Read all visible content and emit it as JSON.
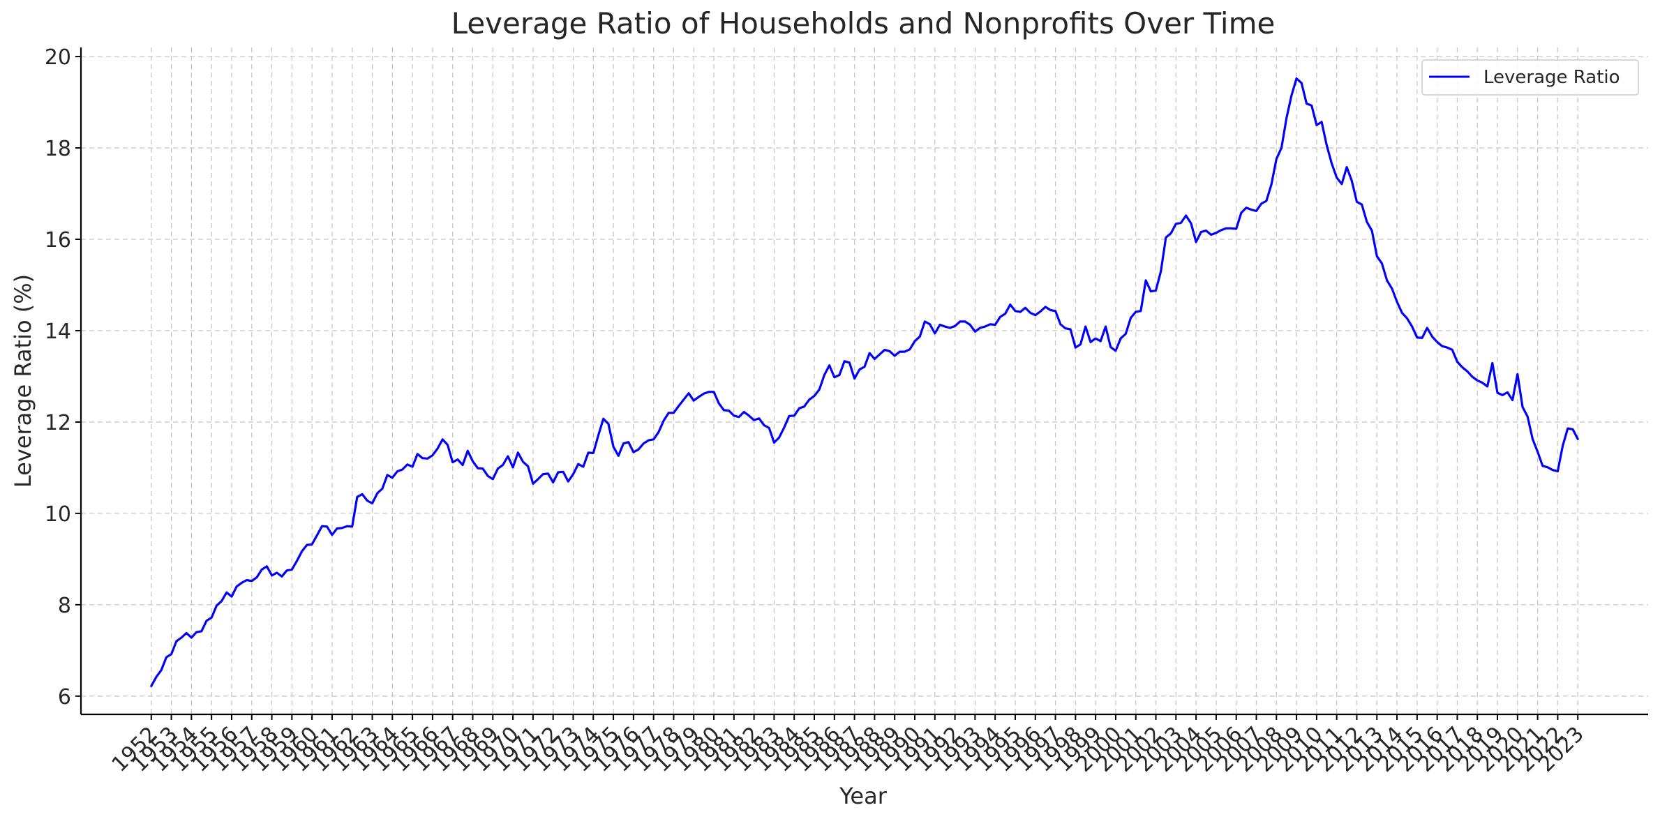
{
  "chart_data": {
    "type": "line",
    "title": "Leverage Ratio of Households and Nonprofits Over Time",
    "xlabel": "Year",
    "ylabel": "Leverage Ratio (%)",
    "x_range": [
      1952,
      2023
    ],
    "ylim": [
      5.6,
      20.2
    ],
    "yticks": [
      6,
      8,
      10,
      12,
      14,
      16,
      18,
      20
    ],
    "xticks": [
      "1952",
      "1953",
      "1954",
      "1955",
      "1956",
      "1957",
      "1958",
      "1959",
      "1960",
      "1961",
      "1962",
      "1963",
      "1964",
      "1965",
      "1966",
      "1967",
      "1968",
      "1969",
      "1970",
      "1971",
      "1972",
      "1973",
      "1974",
      "1975",
      "1976",
      "1977",
      "1978",
      "1979",
      "1980",
      "1981",
      "1982",
      "1983",
      "1984",
      "1985",
      "1986",
      "1987",
      "1988",
      "1989",
      "1990",
      "1991",
      "1992",
      "1993",
      "1994",
      "1995",
      "1996",
      "1997",
      "1998",
      "1999",
      "2000",
      "2001",
      "2002",
      "2003",
      "2004",
      "2005",
      "2006",
      "2007",
      "2008",
      "2009",
      "2010",
      "2011",
      "2012",
      "2013",
      "2014",
      "2015",
      "2016",
      "2017",
      "2018",
      "2019",
      "2020",
      "2021",
      "2022",
      "2023"
    ],
    "grid": true,
    "legend_position": "top-right",
    "color": "#0000ff",
    "series": [
      {
        "name": "Leverage Ratio",
        "x": [
          1952.0,
          1952.25,
          1952.5,
          1952.75,
          1953.0,
          1953.25,
          1953.5,
          1953.75,
          1954.0,
          1954.25,
          1954.5,
          1954.75,
          1955.0,
          1955.25,
          1955.5,
          1955.75,
          1956.0,
          1956.25,
          1956.5,
          1956.75,
          1957.0,
          1957.25,
          1957.5,
          1957.75,
          1958.0,
          1958.25,
          1958.5,
          1958.75,
          1959.0,
          1959.25,
          1959.5,
          1959.75,
          1960.0,
          1960.25,
          1960.5,
          1960.75,
          1961.0,
          1961.25,
          1961.5,
          1961.75,
          1962.0,
          1962.25,
          1962.5,
          1962.75,
          1963.0,
          1963.25,
          1963.5,
          1963.75,
          1964.0,
          1964.25,
          1964.5,
          1964.75,
          1965.0,
          1965.25,
          1965.5,
          1965.75,
          1966.0,
          1966.25,
          1966.5,
          1966.75,
          1967.0,
          1967.25,
          1967.5,
          1967.75,
          1968.0,
          1968.25,
          1968.5,
          1968.75,
          1969.0,
          1969.25,
          1969.5,
          1969.75,
          1970.0,
          1970.25,
          1970.5,
          1970.75,
          1971.0,
          1971.25,
          1971.5,
          1971.75,
          1972.0,
          1972.25,
          1972.5,
          1972.75,
          1973.0,
          1973.25,
          1973.5,
          1973.75,
          1974.0,
          1974.25,
          1974.5,
          1974.75,
          1975.0,
          1975.25,
          1975.5,
          1975.75,
          1976.0,
          1976.25,
          1976.5,
          1976.75,
          1977.0,
          1977.25,
          1977.5,
          1977.75,
          1978.0,
          1978.25,
          1978.5,
          1978.75,
          1979.0,
          1979.25,
          1979.5,
          1979.75,
          1980.0,
          1980.25,
          1980.5,
          1980.75,
          1981.0,
          1981.25,
          1981.5,
          1981.75,
          1982.0,
          1982.25,
          1982.5,
          1982.75,
          1983.0,
          1983.25,
          1983.5,
          1983.75,
          1984.0,
          1984.25,
          1984.5,
          1984.75,
          1985.0,
          1985.25,
          1985.5,
          1985.75,
          1986.0,
          1986.25,
          1986.5,
          1986.75,
          1987.0,
          1987.25,
          1987.5,
          1987.75,
          1988.0,
          1988.25,
          1988.5,
          1988.75,
          1989.0,
          1989.25,
          1989.5,
          1989.75,
          1990.0,
          1990.25,
          1990.5,
          1990.75,
          1991.0,
          1991.25,
          1991.5,
          1991.75,
          1992.0,
          1992.25,
          1992.5,
          1992.75,
          1993.0,
          1993.25,
          1993.5,
          1993.75,
          1994.0,
          1994.25,
          1994.5,
          1994.75,
          1995.0,
          1995.25,
          1995.5,
          1995.75,
          1996.0,
          1996.25,
          1996.5,
          1996.75,
          1997.0,
          1997.25,
          1997.5,
          1997.75,
          1998.0,
          1998.25,
          1998.5,
          1998.75,
          1999.0,
          1999.25,
          1999.5,
          1999.75,
          2000.0,
          2000.25,
          2000.5,
          2000.75,
          2001.0,
          2001.25,
          2001.5,
          2001.75,
          2002.0,
          2002.25,
          2002.5,
          2002.75,
          2003.0,
          2003.25,
          2003.5,
          2003.75,
          2004.0,
          2004.25,
          2004.5,
          2004.75,
          2005.0,
          2005.25,
          2005.5,
          2005.75,
          2006.0,
          2006.25,
          2006.5,
          2006.75,
          2007.0,
          2007.25,
          2007.5,
          2007.75,
          2008.0,
          2008.25,
          2008.5,
          2008.75,
          2009.0,
          2009.25,
          2009.5,
          2009.75,
          2010.0,
          2010.25,
          2010.5,
          2010.75,
          2011.0,
          2011.25,
          2011.5,
          2011.75,
          2012.0,
          2012.25,
          2012.5,
          2012.75,
          2013.0,
          2013.25,
          2013.5,
          2013.75,
          2014.0,
          2014.25,
          2014.5,
          2014.75,
          2015.0,
          2015.25,
          2015.5,
          2015.75,
          2016.0,
          2016.25,
          2016.5,
          2016.75,
          2017.0,
          2017.25,
          2017.5,
          2017.75,
          2018.0,
          2018.25,
          2018.5,
          2018.75,
          2019.0,
          2019.25,
          2019.5,
          2019.75,
          2020.0,
          2020.25,
          2020.5,
          2020.75,
          2021.0,
          2021.25,
          2021.5,
          2021.75,
          2022.0,
          2022.25,
          2022.5,
          2022.75,
          2023.0
        ],
        "y": [
          6.22,
          6.42,
          6.57,
          6.85,
          6.92,
          7.2,
          7.28,
          7.38,
          7.28,
          7.4,
          7.42,
          7.65,
          7.72,
          7.98,
          8.08,
          8.27,
          8.18,
          8.4,
          8.48,
          8.54,
          8.52,
          8.6,
          8.77,
          8.84,
          8.64,
          8.7,
          8.62,
          8.75,
          8.77,
          8.96,
          9.17,
          9.31,
          9.32,
          9.52,
          9.72,
          9.71,
          9.53,
          9.67,
          9.68,
          9.72,
          9.71,
          10.36,
          10.42,
          10.28,
          10.22,
          10.44,
          10.54,
          10.84,
          10.78,
          10.92,
          10.96,
          11.07,
          11.02,
          11.3,
          11.21,
          11.2,
          11.27,
          11.42,
          11.62,
          11.5,
          11.12,
          11.18,
          11.06,
          11.37,
          11.14,
          10.99,
          10.98,
          10.82,
          10.75,
          10.98,
          11.06,
          11.25,
          11.01,
          11.33,
          11.13,
          11.03,
          10.65,
          10.75,
          10.86,
          10.87,
          10.68,
          10.9,
          10.91,
          10.7,
          10.86,
          11.08,
          11.02,
          11.33,
          11.32,
          11.71,
          12.07,
          11.96,
          11.46,
          11.26,
          11.53,
          11.56,
          11.34,
          11.4,
          11.53,
          11.6,
          11.62,
          11.78,
          12.03,
          12.2,
          12.2,
          12.35,
          12.49,
          12.63,
          12.47,
          12.55,
          12.62,
          12.66,
          12.66,
          12.41,
          12.26,
          12.25,
          12.14,
          12.11,
          12.22,
          12.14,
          12.04,
          12.08,
          11.93,
          11.87,
          11.55,
          11.66,
          11.88,
          12.13,
          12.14,
          12.3,
          12.34,
          12.49,
          12.57,
          12.71,
          13.03,
          13.24,
          12.98,
          13.03,
          13.33,
          13.3,
          12.95,
          13.15,
          13.21,
          13.51,
          13.38,
          13.48,
          13.58,
          13.55,
          13.45,
          13.54,
          13.54,
          13.59,
          13.77,
          13.87,
          14.2,
          14.14,
          13.94,
          14.13,
          14.09,
          14.06,
          14.1,
          14.2,
          14.2,
          14.13,
          13.98,
          14.06,
          14.09,
          14.14,
          14.13,
          14.3,
          14.37,
          14.57,
          14.43,
          14.41,
          14.5,
          14.39,
          14.34,
          14.42,
          14.52,
          14.45,
          14.43,
          14.14,
          14.05,
          14.03,
          13.63,
          13.7,
          14.09,
          13.75,
          13.83,
          13.77,
          14.09,
          13.64,
          13.56,
          13.83,
          13.93,
          14.28,
          14.41,
          14.43,
          15.1,
          14.86,
          14.88,
          15.3,
          16.04,
          16.13,
          16.34,
          16.36,
          16.52,
          16.35,
          15.94,
          16.16,
          16.19,
          16.1,
          16.14,
          16.2,
          16.24,
          16.24,
          16.23,
          16.58,
          16.69,
          16.65,
          16.62,
          16.78,
          16.84,
          17.2,
          17.76,
          18.0,
          18.65,
          19.15,
          19.52,
          19.42,
          18.97,
          18.93,
          18.5,
          18.57,
          18.06,
          17.66,
          17.35,
          17.21,
          17.58,
          17.28,
          16.82,
          16.76,
          16.38,
          16.19,
          15.63,
          15.47,
          15.1,
          14.92,
          14.63,
          14.39,
          14.27,
          14.09,
          13.85,
          13.84,
          14.06,
          13.87,
          13.75,
          13.66,
          13.63,
          13.58,
          13.32,
          13.2,
          13.11,
          12.99,
          12.91,
          12.86,
          12.78,
          13.29,
          12.64,
          12.59,
          12.65,
          12.48,
          13.05,
          12.33,
          12.12,
          11.63,
          11.35,
          11.04,
          11.01,
          10.95,
          10.92,
          11.48,
          11.86,
          11.84,
          11.63
        ]
      }
    ]
  }
}
